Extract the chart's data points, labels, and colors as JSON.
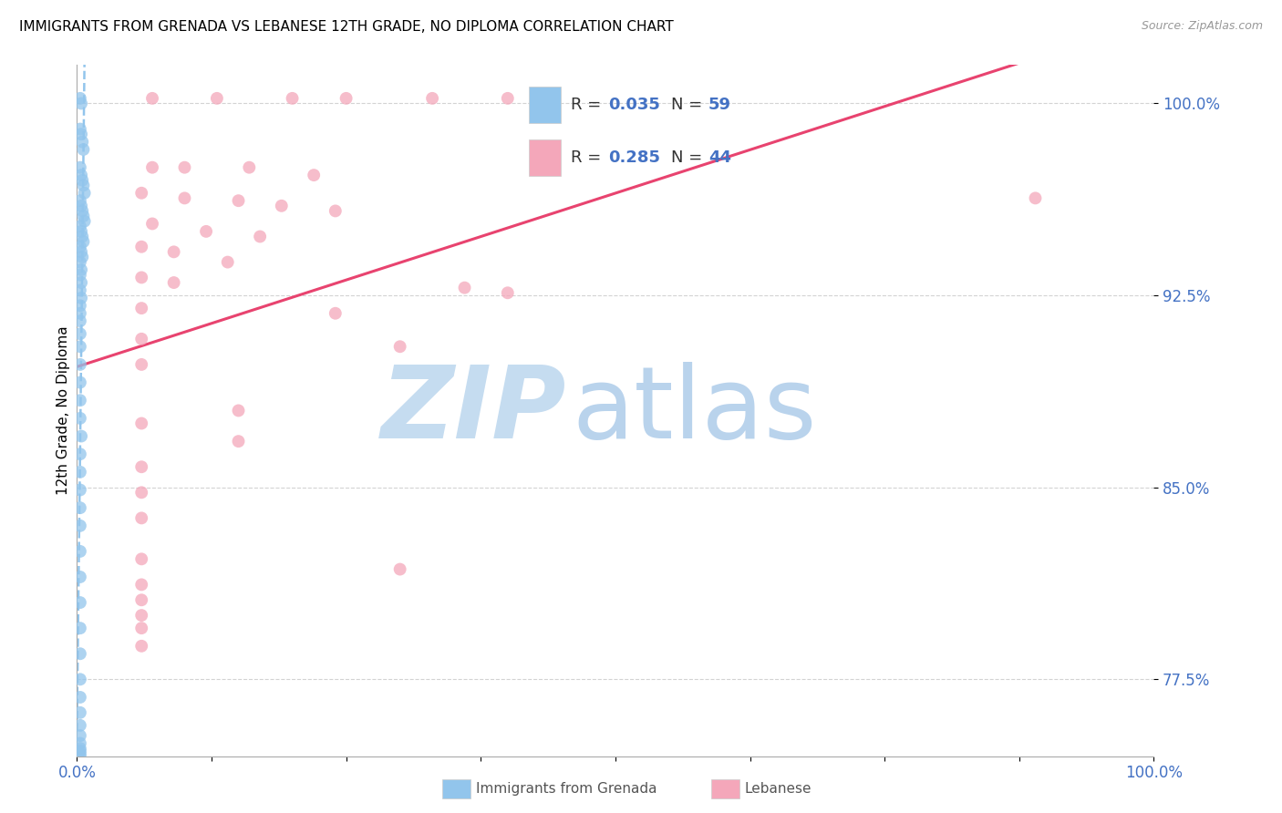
{
  "title": "IMMIGRANTS FROM GRENADA VS LEBANESE 12TH GRADE, NO DIPLOMA CORRELATION CHART",
  "source": "Source: ZipAtlas.com",
  "ylabel": "12th Grade, No Diploma",
  "xlim": [
    0.0,
    1.0
  ],
  "ylim": [
    0.745,
    1.015
  ],
  "yticks": [
    0.775,
    0.85,
    0.925,
    1.0
  ],
  "ytick_labels": [
    "77.5%",
    "85.0%",
    "92.5%",
    "100.0%"
  ],
  "xticks": [
    0.0,
    0.125,
    0.25,
    0.375,
    0.5,
    0.625,
    0.75,
    0.875,
    1.0
  ],
  "xtick_labels": [
    "0.0%",
    "",
    "",
    "",
    "",
    "",
    "",
    "",
    "100.0%"
  ],
  "grenada_R": 0.035,
  "grenada_N": 59,
  "lebanese_R": 0.285,
  "lebanese_N": 44,
  "grenada_color": "#92C5EC",
  "lebanese_color": "#F4A7BA",
  "grenada_line_color": "#92C5EC",
  "lebanese_line_color": "#E8436F",
  "background_color": "#FFFFFF",
  "grenada_x": [
    0.003,
    0.004,
    0.003,
    0.004,
    0.005,
    0.006,
    0.003,
    0.004,
    0.005,
    0.006,
    0.007,
    0.003,
    0.004,
    0.005,
    0.006,
    0.007,
    0.003,
    0.004,
    0.005,
    0.006,
    0.003,
    0.004,
    0.005,
    0.003,
    0.004,
    0.003,
    0.004,
    0.003,
    0.004,
    0.003,
    0.003,
    0.003,
    0.003,
    0.003,
    0.003,
    0.003,
    0.003,
    0.003,
    0.004,
    0.003,
    0.003,
    0.003,
    0.003,
    0.003,
    0.003,
    0.003,
    0.003,
    0.003,
    0.003,
    0.003,
    0.003,
    0.003,
    0.003,
    0.003,
    0.003,
    0.003,
    0.003,
    0.003,
    0.003
  ],
  "grenada_y": [
    1.002,
    1.0,
    0.99,
    0.988,
    0.985,
    0.982,
    0.975,
    0.972,
    0.97,
    0.968,
    0.965,
    0.962,
    0.96,
    0.958,
    0.956,
    0.954,
    0.952,
    0.95,
    0.948,
    0.946,
    0.944,
    0.942,
    0.94,
    0.938,
    0.935,
    0.933,
    0.93,
    0.927,
    0.924,
    0.921,
    0.918,
    0.915,
    0.91,
    0.905,
    0.898,
    0.891,
    0.884,
    0.877,
    0.87,
    0.863,
    0.856,
    0.849,
    0.842,
    0.835,
    0.825,
    0.815,
    0.805,
    0.795,
    0.785,
    0.775,
    0.768,
    0.762,
    0.757,
    0.753,
    0.75,
    0.748,
    0.747,
    0.746,
    0.745
  ],
  "lebanese_x": [
    0.07,
    0.13,
    0.2,
    0.25,
    0.33,
    0.4,
    0.07,
    0.1,
    0.16,
    0.22,
    0.06,
    0.1,
    0.15,
    0.19,
    0.24,
    0.07,
    0.12,
    0.17,
    0.06,
    0.09,
    0.14,
    0.06,
    0.09,
    0.36,
    0.4,
    0.06,
    0.24,
    0.06,
    0.3,
    0.06,
    0.15,
    0.06,
    0.15,
    0.06,
    0.06,
    0.89,
    0.06,
    0.3,
    0.06,
    0.06,
    0.06,
    0.06,
    0.06,
    0.06
  ],
  "lebanese_y": [
    1.002,
    1.002,
    1.002,
    1.002,
    1.002,
    1.002,
    0.975,
    0.975,
    0.975,
    0.972,
    0.965,
    0.963,
    0.962,
    0.96,
    0.958,
    0.953,
    0.95,
    0.948,
    0.944,
    0.942,
    0.938,
    0.932,
    0.93,
    0.928,
    0.926,
    0.92,
    0.918,
    0.908,
    0.905,
    0.898,
    0.88,
    0.875,
    0.868,
    0.858,
    0.848,
    0.963,
    0.838,
    0.818,
    0.822,
    0.812,
    0.806,
    0.8,
    0.795,
    0.788
  ]
}
